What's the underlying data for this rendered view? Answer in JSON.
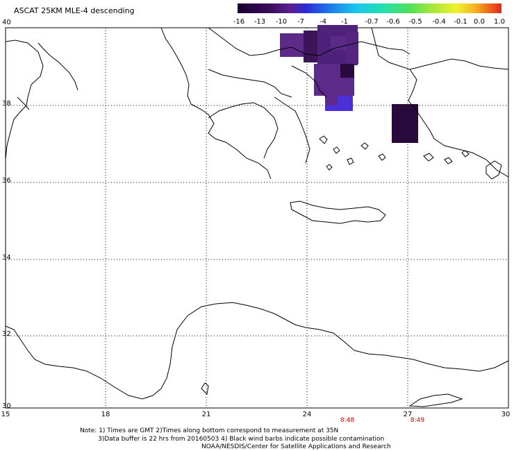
{
  "title": "ASCAT 25KM MLE-4 descending",
  "colorbar": {
    "labels": [
      "-16",
      "-13",
      "-10",
      "-7",
      "-4",
      "-1",
      "-0.7",
      "-0.6",
      "-0.5",
      "-0.4",
      "-0.1",
      "0.0",
      "1.0"
    ],
    "colors": [
      "#1a0033",
      "#3a0b5a",
      "#5b1f8f",
      "#2a2ad8",
      "#1e7be8",
      "#1bc6ee",
      "#20e0b0",
      "#4fe05a",
      "#a7e83a",
      "#f1f12c",
      "#f4b421",
      "#ef6a1c",
      "#e0281a"
    ]
  },
  "latitudes": [
    "40",
    "38",
    "36",
    "34",
    "32",
    "30"
  ],
  "longitudes": [
    "15",
    "18",
    "21",
    "24",
    "27",
    "30"
  ],
  "times": [
    "8:48",
    "8:49"
  ],
  "notes": {
    "line1": "Note: 1) Times are GMT 2)Times along bottom correspond to measurement at 35N",
    "line2": "3)Data buffer is 22 hrs from 20160503 4) Black wind barbs indicate possible contamination",
    "line3": "NOAA/NESDIS/Center for Satellite Applications and Research"
  },
  "swath_colors": {
    "purple": "#5c2b8a",
    "dark": "#2a0a3c",
    "blue": "#4b2fd8"
  }
}
